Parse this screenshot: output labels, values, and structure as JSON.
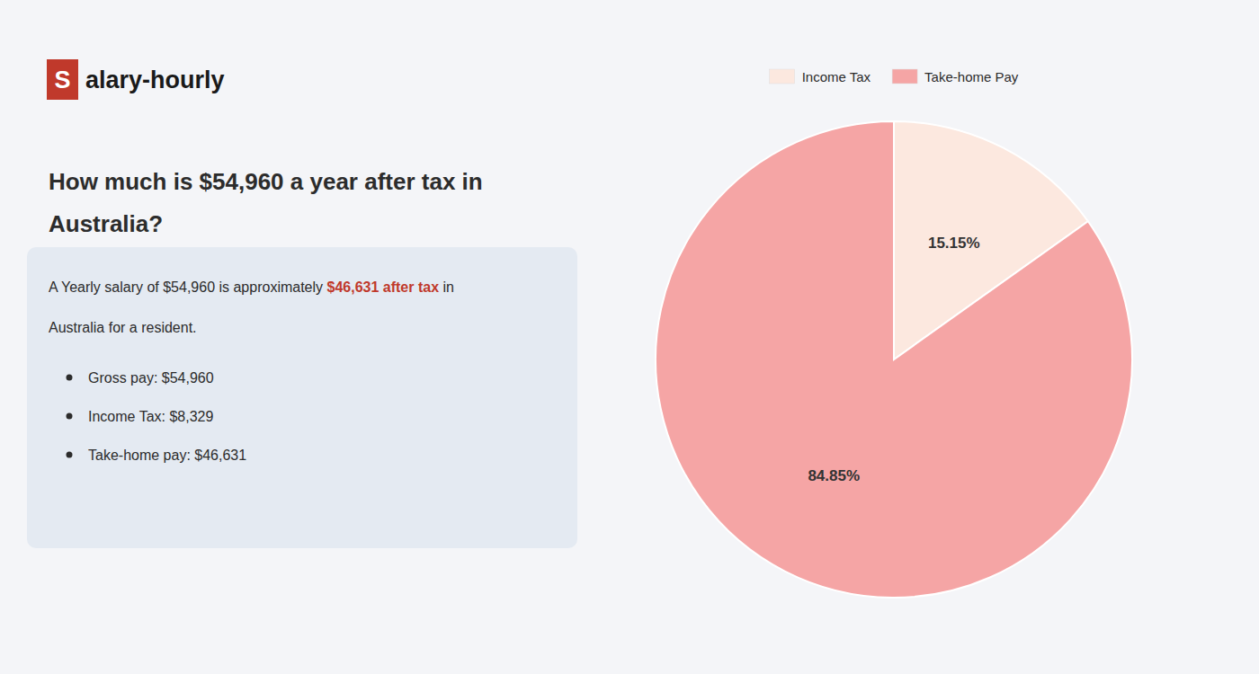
{
  "chart_data": {
    "type": "pie",
    "title": "How much is $54,960 a year after tax in Australia?",
    "annotations": [
      "S",
      "alary-hourly",
      "A Yearly salary of $54,960 is approximately ",
      "$46,631 after tax",
      " in",
      "Australia for a resident.",
      "Gross pay: $54,960",
      "Income Tax: $8,329",
      "Take-home pay: $46,631"
    ],
    "categories": [
      "Income Tax",
      "Take-home Pay"
    ],
    "values": [
      15.15,
      84.85
    ],
    "value_labels": [
      "15.15%",
      "84.85%"
    ],
    "colors": [
      "#fce8df",
      "#f5a5a5"
    ],
    "data_labels": true,
    "legend": "top"
  }
}
